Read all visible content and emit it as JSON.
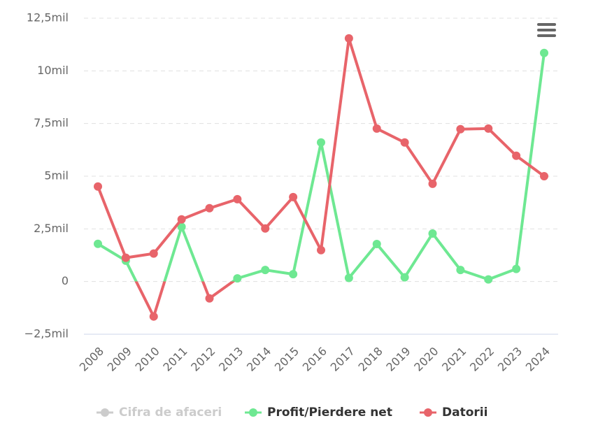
{
  "chart_data": {
    "type": "line",
    "categories": [
      "2008",
      "2009",
      "2010",
      "2011",
      "2012",
      "2013",
      "2014",
      "2015",
      "2016",
      "2017",
      "2018",
      "2019",
      "2020",
      "2021",
      "2022",
      "2023",
      "2024"
    ],
    "series": [
      {
        "name": "Cifra de afaceri",
        "color": "#cccccc",
        "visible": false,
        "values": [
          null,
          null,
          null,
          null,
          null,
          null,
          null,
          null,
          null,
          null,
          null,
          null,
          null,
          null,
          null,
          null,
          null
        ]
      },
      {
        "name": "Profit/Pierdere net",
        "color": "#6ee892",
        "negative_color": "#e8646a",
        "values": [
          1.79,
          0.99,
          -1.66,
          2.6,
          -0.8,
          0.15,
          0.55,
          0.35,
          6.6,
          0.17,
          1.78,
          0.2,
          2.28,
          0.55,
          0.1,
          0.6,
          10.85
        ]
      },
      {
        "name": "Datorii",
        "color": "#e8646a",
        "values": [
          4.51,
          1.13,
          1.33,
          2.95,
          3.48,
          3.91,
          2.52,
          4.01,
          1.49,
          11.54,
          7.26,
          6.6,
          4.64,
          7.23,
          7.26,
          5.97,
          5.0
        ]
      }
    ],
    "ylim": [
      -2.5,
      12.5
    ],
    "yticks": [
      {
        "value": -2.5,
        "label": "−2,5mil"
      },
      0,
      {
        "value": 2.5,
        "label": "2,5mil"
      },
      {
        "value": 5,
        "label": "5mil"
      },
      {
        "value": 7.5,
        "label": "7,5mil"
      },
      {
        "value": 10,
        "label": "10mil"
      },
      {
        "value": 12.5,
        "label": "12,5mil"
      }
    ],
    "grid": true
  }
}
